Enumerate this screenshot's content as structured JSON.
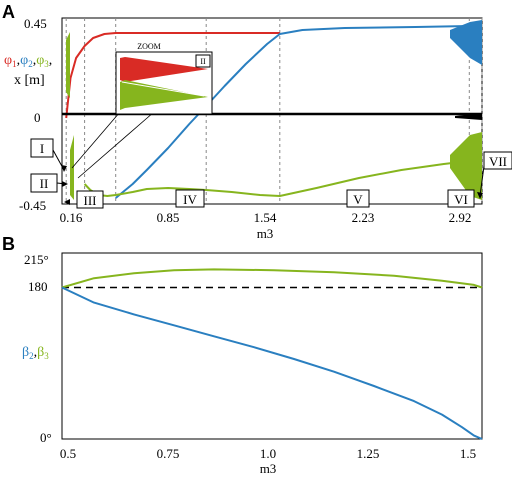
{
  "colors": {
    "red": "#d92b25",
    "blue": "#2a7fc0",
    "green": "#86b51e",
    "black": "#000000",
    "grid": "#888888"
  },
  "chart_data": [
    {
      "panel_label": "A",
      "type": "line",
      "xlabel": "m3",
      "xlim": [
        0,
        2.97
      ],
      "ylim": [
        -0.45,
        0.45
      ],
      "x_ticks": [
        "0.16",
        "0.85",
        "1.54",
        "2.23",
        "2.92"
      ],
      "y_ticks": [
        "0.45",
        "0",
        "-0.45"
      ],
      "ylabel_parts": [
        "φ",
        "1",
        ",",
        "φ",
        "2",
        ",",
        "φ",
        "3",
        ","
      ],
      "ylabel_line2": "x [m]",
      "dashed_boundaries": [
        0.03,
        0.16,
        0.38,
        1.02,
        1.54,
        2.88,
        2.97
      ],
      "regions": [
        "I",
        "II",
        "III",
        "IV",
        "V",
        "VI",
        "VII"
      ],
      "inset": {
        "title": "ZOOM",
        "tag": "II"
      },
      "series": [
        {
          "color": "red",
          "points": [
            [
              0.03,
              -0.02
            ],
            [
              0.06,
              0.18
            ],
            [
              0.1,
              0.28
            ],
            [
              0.16,
              0.34
            ],
            [
              0.22,
              0.38
            ],
            [
              0.3,
              0.4
            ],
            [
              0.38,
              0.405
            ],
            [
              0.6,
              0.405
            ],
            [
              1.0,
              0.405
            ],
            [
              1.54,
              0.405
            ]
          ]
        },
        {
          "color": "blue",
          "points": [
            [
              0.38,
              -0.42
            ],
            [
              0.5,
              -0.35
            ],
            [
              0.6,
              -0.28
            ],
            [
              0.75,
              -0.17
            ],
            [
              0.9,
              -0.05
            ],
            [
              1.02,
              0.04
            ],
            [
              1.15,
              0.14
            ],
            [
              1.3,
              0.25
            ],
            [
              1.45,
              0.35
            ],
            [
              1.54,
              0.4
            ],
            [
              1.7,
              0.42
            ],
            [
              2.0,
              0.43
            ],
            [
              2.5,
              0.435
            ],
            [
              2.88,
              0.44
            ]
          ]
        },
        {
          "color": "green",
          "points": [
            [
              0.16,
              -0.35
            ],
            [
              0.2,
              -0.38
            ],
            [
              0.26,
              -0.405
            ],
            [
              0.32,
              -0.41
            ],
            [
              0.38,
              -0.405
            ],
            [
              0.5,
              -0.39
            ],
            [
              0.6,
              -0.375
            ],
            [
              0.75,
              -0.37
            ],
            [
              0.9,
              -0.375
            ],
            [
              1.02,
              -0.38
            ],
            [
              1.2,
              -0.39
            ],
            [
              1.4,
              -0.405
            ],
            [
              1.54,
              -0.41
            ],
            [
              1.8,
              -0.37
            ],
            [
              2.1,
              -0.32
            ],
            [
              2.4,
              -0.28
            ],
            [
              2.7,
              -0.25
            ],
            [
              2.88,
              -0.235
            ]
          ]
        },
        {
          "color": "black",
          "points": [
            [
              0.0,
              0.0
            ],
            [
              2.7,
              0.0
            ],
            [
              2.97,
              0.0
            ]
          ]
        }
      ]
    },
    {
      "panel_label": "B",
      "type": "line",
      "xlabel": "m3",
      "xlim": [
        0.47,
        1.52
      ],
      "ylim": [
        0,
        215
      ],
      "x_ticks": [
        "0.5",
        "0.75",
        "1.0",
        "1.25",
        "1.5"
      ],
      "y_ticks": [
        "215°",
        "180",
        "0°"
      ],
      "ylabel_parts": [
        "β",
        "2",
        ",",
        "β",
        "3"
      ],
      "reference_line": 180,
      "series": [
        {
          "color": "green",
          "points": [
            [
              0.47,
              180
            ],
            [
              0.55,
              191
            ],
            [
              0.65,
              197
            ],
            [
              0.75,
              200.5
            ],
            [
              0.85,
              201.5
            ],
            [
              1.0,
              200.5
            ],
            [
              1.15,
              198
            ],
            [
              1.3,
              194
            ],
            [
              1.42,
              188
            ],
            [
              1.5,
              183
            ],
            [
              1.52,
              180
            ]
          ]
        },
        {
          "color": "blue",
          "points": [
            [
              0.47,
              180
            ],
            [
              0.55,
              162
            ],
            [
              0.65,
              148
            ],
            [
              0.75,
              135
            ],
            [
              0.85,
              122
            ],
            [
              0.95,
              109
            ],
            [
              1.05,
              95
            ],
            [
              1.15,
              80
            ],
            [
              1.25,
              63
            ],
            [
              1.35,
              45
            ],
            [
              1.42,
              29
            ],
            [
              1.47,
              14
            ],
            [
              1.5,
              4
            ],
            [
              1.52,
              0
            ]
          ]
        }
      ]
    }
  ]
}
